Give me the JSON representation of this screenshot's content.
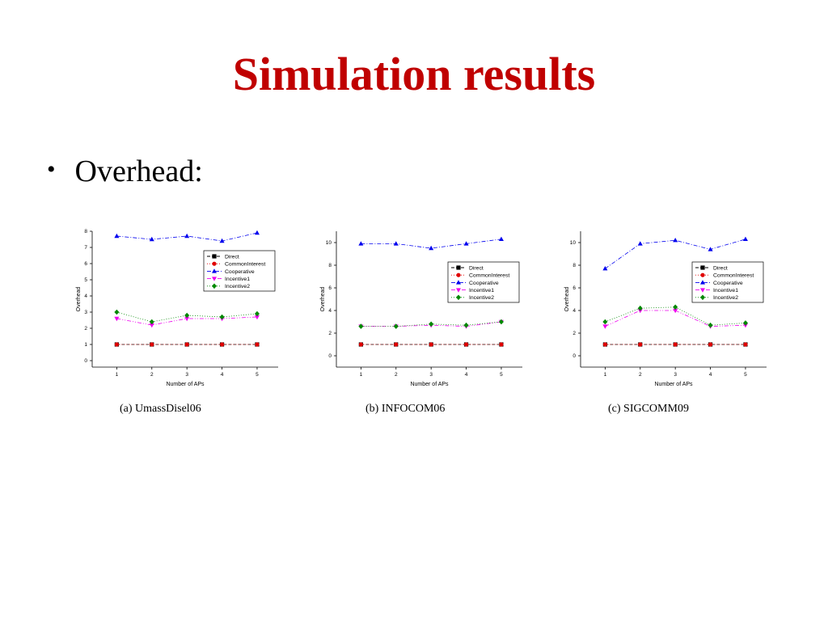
{
  "slide": {
    "title": "Simulation results",
    "bullet": "Overhead:"
  },
  "colors": {
    "title": "#c00000"
  },
  "chart_data": [
    {
      "type": "line",
      "caption": "(a) UmassDisel06",
      "xlabel": "Number of APs",
      "ylabel": "Overhead",
      "x": [
        1,
        2,
        3,
        4,
        5
      ],
      "xlim": [
        0.3,
        5.6
      ],
      "ylim": [
        -0.4,
        8
      ],
      "yticks": [
        0,
        1,
        2,
        3,
        4,
        5,
        6,
        7,
        8
      ],
      "legend_position": "top-right",
      "series": [
        {
          "name": "Direct",
          "values": [
            1,
            1,
            1,
            1,
            1
          ],
          "color": "#000000",
          "marker": "square",
          "dash": "4,2"
        },
        {
          "name": "CommonInterest",
          "values": [
            1,
            1,
            1,
            1,
            1
          ],
          "color": "#e00000",
          "marker": "circle",
          "dash": "1,2"
        },
        {
          "name": "Cooperative",
          "values": [
            7.7,
            7.5,
            7.7,
            7.4,
            7.9
          ],
          "color": "#0000ee",
          "marker": "triangle-up",
          "dash": "5,2,1,2"
        },
        {
          "name": "Incentive1",
          "values": [
            2.6,
            2.2,
            2.6,
            2.6,
            2.7
          ],
          "color": "#ee00ee",
          "marker": "triangle-down",
          "dash": "5,2,1,2,1,2"
        },
        {
          "name": "Incentive2",
          "values": [
            3.0,
            2.4,
            2.8,
            2.7,
            2.9
          ],
          "color": "#008800",
          "marker": "diamond",
          "dash": "1,2"
        }
      ]
    },
    {
      "type": "line",
      "caption": "(b) INFOCOM06",
      "xlabel": "Number of APs",
      "ylabel": "Overhead",
      "x": [
        1,
        2,
        3,
        4,
        5
      ],
      "xlim": [
        0.3,
        5.6
      ],
      "ylim": [
        -1,
        11
      ],
      "yticks": [
        0,
        2,
        4,
        6,
        8,
        10
      ],
      "legend_position": "right",
      "series": [
        {
          "name": "Direct",
          "values": [
            1,
            1,
            1,
            1,
            1
          ],
          "color": "#000000",
          "marker": "square",
          "dash": "4,2"
        },
        {
          "name": "CommonInterest",
          "values": [
            1,
            1,
            1,
            1,
            1
          ],
          "color": "#e00000",
          "marker": "circle",
          "dash": "1,2"
        },
        {
          "name": "Cooperative",
          "values": [
            9.9,
            9.9,
            9.5,
            9.9,
            10.3
          ],
          "color": "#0000ee",
          "marker": "triangle-up",
          "dash": "5,2,1,2"
        },
        {
          "name": "Incentive1",
          "values": [
            2.6,
            2.6,
            2.7,
            2.6,
            3.0
          ],
          "color": "#ee00ee",
          "marker": "triangle-down",
          "dash": "5,2,1,2,1,2"
        },
        {
          "name": "Incentive2",
          "values": [
            2.6,
            2.6,
            2.8,
            2.7,
            3.0
          ],
          "color": "#008800",
          "marker": "diamond",
          "dash": "1,2"
        }
      ]
    },
    {
      "type": "line",
      "caption": "(c) SIGCOMM09",
      "xlabel": "Number of APs",
      "ylabel": "Overhead",
      "x": [
        1,
        2,
        3,
        4,
        5
      ],
      "xlim": [
        0.3,
        5.6
      ],
      "ylim": [
        -1,
        11
      ],
      "yticks": [
        0,
        2,
        4,
        6,
        8,
        10
      ],
      "legend_position": "right",
      "series": [
        {
          "name": "Direct",
          "values": [
            1,
            1,
            1,
            1,
            1
          ],
          "color": "#000000",
          "marker": "square",
          "dash": "4,2"
        },
        {
          "name": "CommonInterest",
          "values": [
            1,
            1,
            1,
            1,
            1
          ],
          "color": "#e00000",
          "marker": "circle",
          "dash": "1,2"
        },
        {
          "name": "Cooperative",
          "values": [
            7.7,
            9.9,
            10.2,
            9.4,
            10.3
          ],
          "color": "#0000ee",
          "marker": "triangle-up",
          "dash": "5,2,1,2"
        },
        {
          "name": "Incentive1",
          "values": [
            2.6,
            4.0,
            4.0,
            2.6,
            2.7
          ],
          "color": "#ee00ee",
          "marker": "triangle-down",
          "dash": "5,2,1,2,1,2"
        },
        {
          "name": "Incentive2",
          "values": [
            3.0,
            4.2,
            4.3,
            2.7,
            2.9
          ],
          "color": "#008800",
          "marker": "diamond",
          "dash": "1,2"
        }
      ]
    }
  ]
}
